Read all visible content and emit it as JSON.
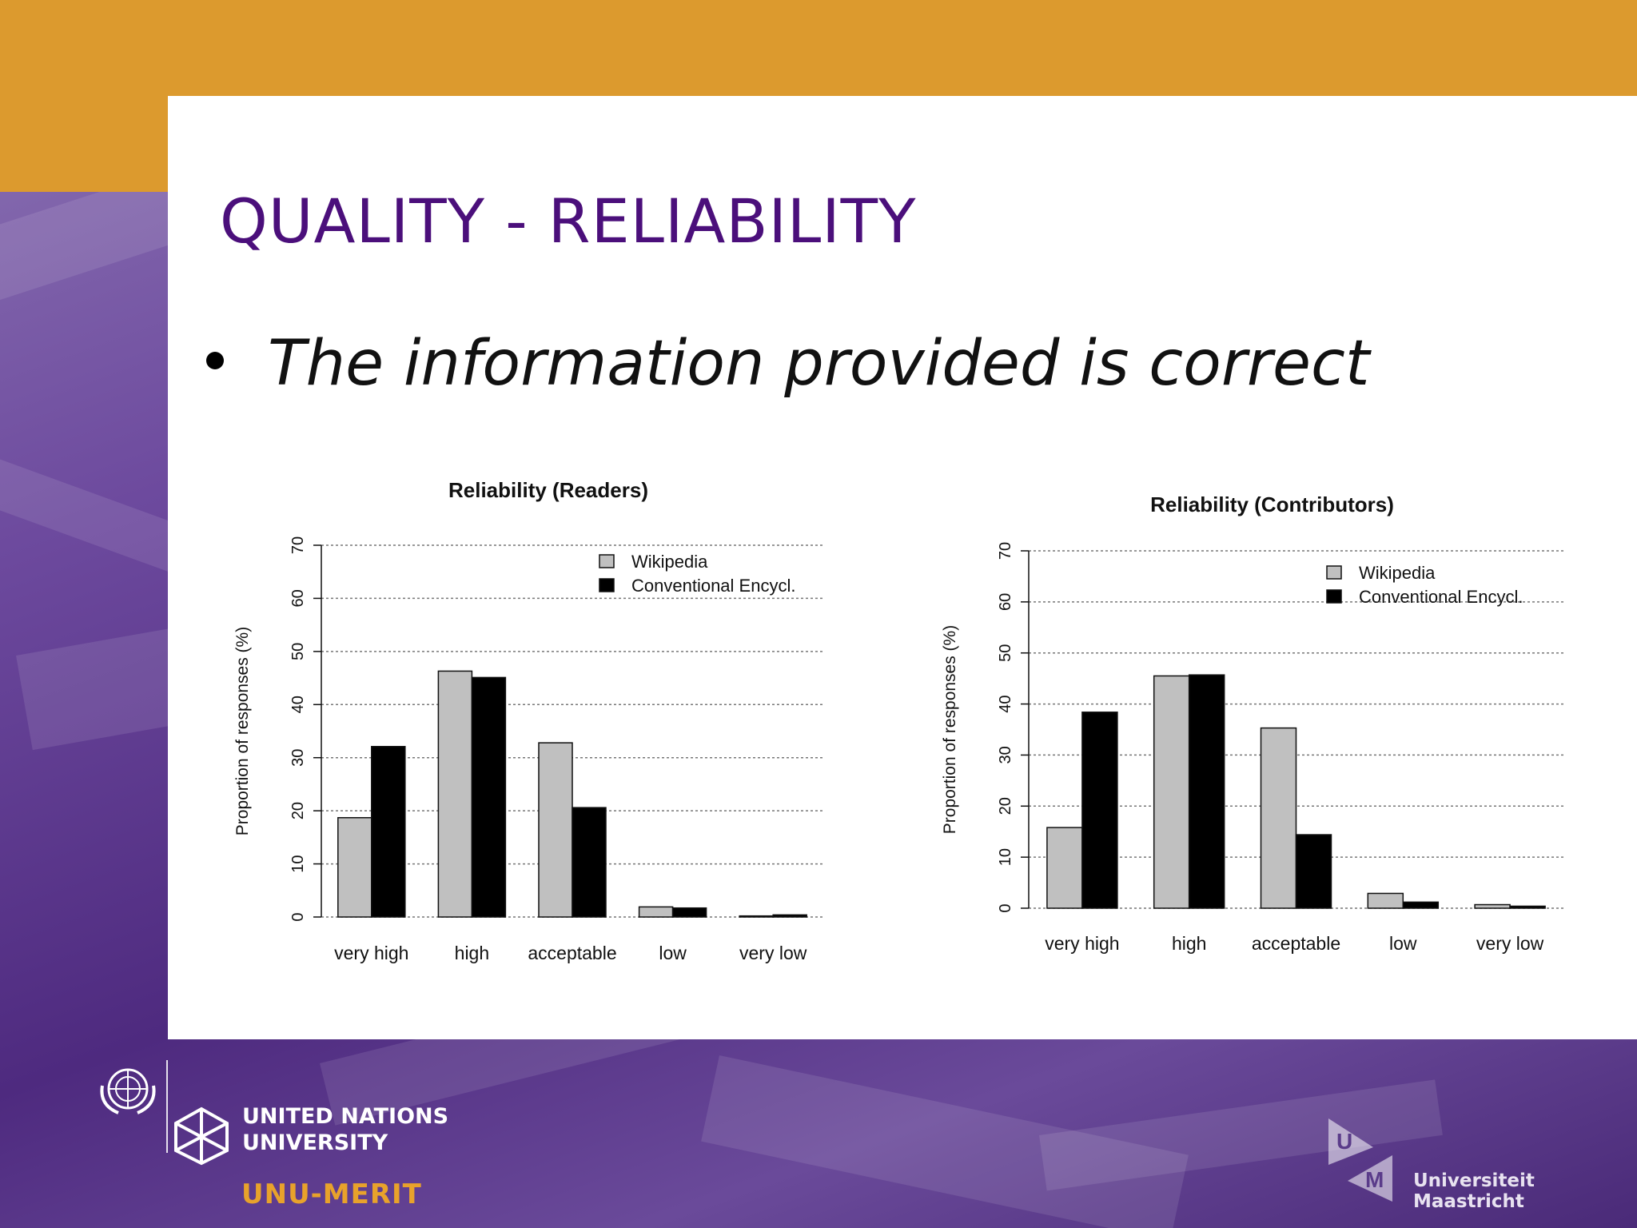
{
  "slide": {
    "title": "QUALITY - RELIABILITY",
    "bullet": "The information provided is correct"
  },
  "footer": {
    "unu_line1": "UNITED NATIONS",
    "unu_line2": "UNIVERSITY",
    "merit": "UNU-MERIT",
    "maastricht": "Universiteit Maastricht",
    "um_letters": [
      "U",
      "M"
    ]
  },
  "colors": {
    "gold": "#dc9a2e",
    "title_purple": "#4b0f7b",
    "wikipedia": "#c0c0c0",
    "conventional": "#000000"
  },
  "chart_data": [
    {
      "type": "bar",
      "title": "Reliability (Readers)",
      "ylabel": "Proportion of responses (%)",
      "xlabel": "",
      "categories": [
        "very high",
        "high",
        "acceptable",
        "low",
        "very low"
      ],
      "ylim": [
        0,
        70
      ],
      "yticks": [
        0,
        10,
        20,
        30,
        40,
        50,
        60,
        70
      ],
      "grid": true,
      "legend": "top-right",
      "series": [
        {
          "name": "Wikipedia",
          "values": [
            18.7,
            46.3,
            32.8,
            1.9,
            0.2
          ]
        },
        {
          "name": "Conventional Encycl.",
          "values": [
            32.1,
            45.1,
            20.6,
            1.7,
            0.4
          ]
        }
      ]
    },
    {
      "type": "bar",
      "title": "Reliability (Contributors)",
      "ylabel": "Proportion of responses (%)",
      "xlabel": "",
      "categories": [
        "very high",
        "high",
        "acceptable",
        "low",
        "very low"
      ],
      "ylim": [
        0,
        70
      ],
      "yticks": [
        0,
        10,
        20,
        30,
        40,
        50,
        60,
        70
      ],
      "grid": true,
      "legend": "top-right",
      "series": [
        {
          "name": "Wikipedia",
          "values": [
            15.8,
            45.5,
            35.3,
            2.9,
            0.7
          ]
        },
        {
          "name": "Conventional Encycl.",
          "values": [
            38.4,
            45.7,
            14.4,
            1.2,
            0.4
          ]
        }
      ]
    }
  ]
}
